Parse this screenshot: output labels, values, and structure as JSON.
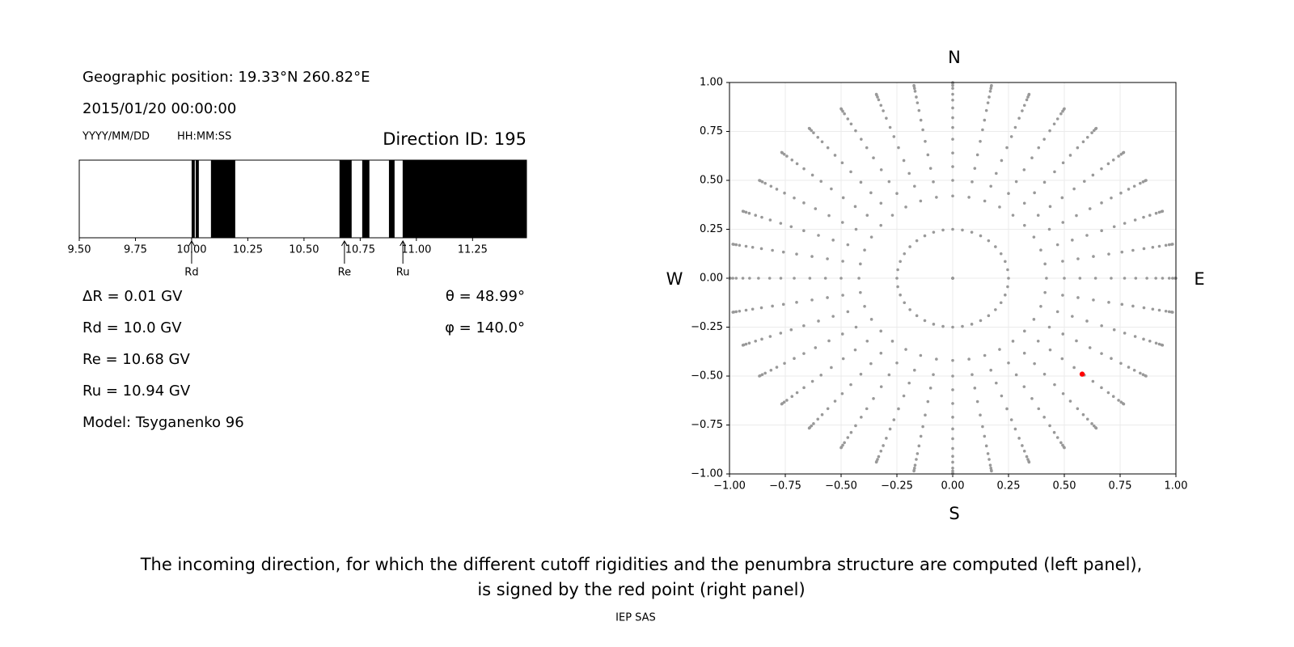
{
  "header": {
    "position": "Geographic position: 19.33°N 260.82°E",
    "datetime": "2015/01/20 00:00:00",
    "date_format": "YYYY/MM/DD",
    "time_format": "HH:MM:SS"
  },
  "chart_data": [
    {
      "type": "penumbra",
      "title": "Direction ID: 195",
      "color": "#000000",
      "xlim": [
        9.5,
        11.49
      ],
      "xticks": [
        {
          "value": 9.5,
          "label": "9.50"
        },
        {
          "value": 9.75,
          "label": "9.75"
        },
        {
          "value": 10,
          "label": "10.00"
        },
        {
          "value": 10.25,
          "label": "10.25"
        },
        {
          "value": 10.5,
          "label": "10.50"
        },
        {
          "value": 10.75,
          "label": "10.75"
        },
        {
          "value": 11,
          "label": "11.00"
        },
        {
          "value": 11.25,
          "label": "11.25"
        }
      ],
      "bands": [
        [
          10.0,
          10.014
        ],
        [
          10.018,
          10.032
        ],
        [
          10.086,
          10.194
        ],
        [
          10.658,
          10.712
        ],
        [
          10.759,
          10.791
        ],
        [
          10.878,
          10.903
        ],
        [
          10.939,
          11.49
        ]
      ],
      "markers": [
        {
          "label": "Rd",
          "value": 10.0
        },
        {
          "label": "Re",
          "value": 10.68
        },
        {
          "label": "Ru",
          "value": 10.94
        }
      ]
    },
    {
      "type": "scatter",
      "grid": true,
      "xlim": [
        -1,
        1
      ],
      "ylim": [
        -1,
        1
      ],
      "xticks": [
        {
          "value": -1,
          "label": "−1.00"
        },
        {
          "value": -0.75,
          "label": "−0.75"
        },
        {
          "value": -0.5,
          "label": "−0.50"
        },
        {
          "value": -0.25,
          "label": "−0.25"
        },
        {
          "value": 0,
          "label": "0.00"
        },
        {
          "value": 0.25,
          "label": "0.25"
        },
        {
          "value": 0.5,
          "label": "0.50"
        },
        {
          "value": 0.75,
          "label": "0.75"
        },
        {
          "value": 1,
          "label": "1.00"
        }
      ],
      "yticks": [
        {
          "value": -1,
          "label": "−1.00"
        },
        {
          "value": -0.75,
          "label": "−0.75"
        },
        {
          "value": -0.5,
          "label": "−0.50"
        },
        {
          "value": -0.25,
          "label": "−0.25"
        },
        {
          "value": 0,
          "label": "0.00"
        },
        {
          "value": 0.25,
          "label": "0.25"
        },
        {
          "value": 0.5,
          "label": "0.50"
        },
        {
          "value": 0.75,
          "label": "0.75"
        },
        {
          "value": 1,
          "label": "1.00"
        }
      ],
      "compass": {
        "north": "N",
        "south": "S",
        "west": "W",
        "east": "E"
      },
      "directions": {
        "color": "#999999",
        "azimuths": [
          0,
          10,
          20,
          30,
          40,
          50,
          60,
          70,
          80,
          90,
          100,
          110,
          120,
          130,
          140,
          150,
          160,
          170,
          180,
          190,
          200,
          210,
          220,
          230,
          240,
          250,
          260,
          270,
          280,
          290,
          300,
          310,
          320,
          330,
          340,
          350
        ],
        "radii": [
          0,
          0.25,
          0.42,
          0.5,
          0.57,
          0.64,
          0.71,
          0.77,
          0.82,
          0.87,
          0.91,
          0.94,
          0.97,
          0.985,
          0.996,
          1
        ]
      },
      "selected": {
        "color": "#ff0000",
        "x": 0.58,
        "y": -0.49
      }
    }
  ],
  "params": {
    "left": [
      "ΔR = 0.01 GV",
      "Rd = 10.0 GV",
      "Re = 10.68 GV",
      "Ru = 10.94 GV",
      "Model: Tsyganenko 96"
    ],
    "right": [
      "θ = 48.99°",
      "φ = 140.0°"
    ]
  },
  "caption": [
    "The incoming direction, for which the different cutoff rigidities and the penumbra structure are computed (left panel),",
    "is signed by the red point (right panel)"
  ],
  "footer": "IEP SAS"
}
